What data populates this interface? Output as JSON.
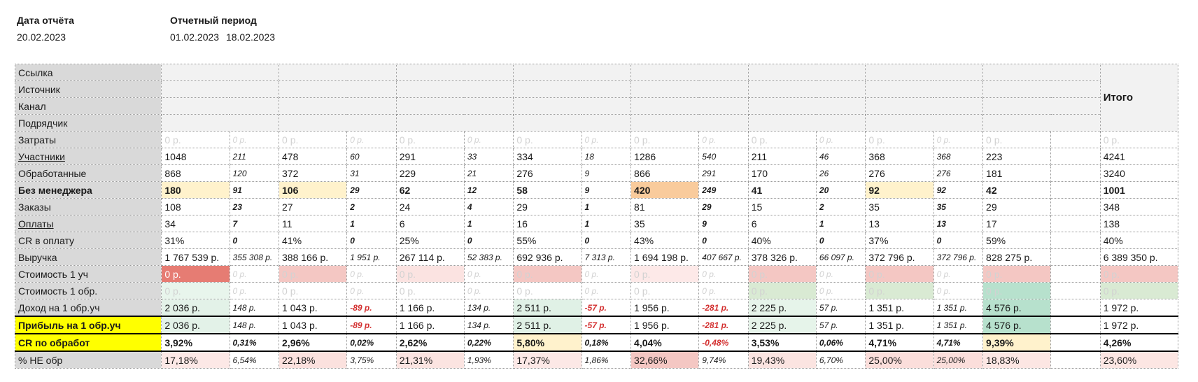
{
  "report_date": {
    "label": "Дата отчёта",
    "value": "20.02.2023"
  },
  "report_period": {
    "label": "Отчетный период",
    "from": "01.02.2023",
    "to": "18.02.2023"
  },
  "total_header": "Итого",
  "meta_rows": [
    "Ссылка",
    "Источник",
    "Канал",
    "Подрядчик"
  ],
  "colors": {
    "label_bg": "#d9d9d9",
    "highlight_yellow": "#ffff00",
    "cost_red_strong": "#e67c73",
    "cost_red_light": "#f4c7c3",
    "green_light": "#d9ead3",
    "green_strong": "#b7e1cd",
    "orange_peak": "#f9cb9c",
    "cream": "#fff2cc",
    "negative_text": "#d32f2f"
  },
  "rows": [
    {
      "label": "Затраты",
      "style": "",
      "cells": [
        [
          "0 р.",
          "0 р."
        ],
        [
          "0 р.",
          "0 р."
        ],
        [
          "0 р.",
          "0 р."
        ],
        [
          "0 р.",
          "0 р."
        ],
        [
          "0 р.",
          "0 р."
        ],
        [
          "0 р.",
          "0 р."
        ],
        [
          "0 р.",
          "0 р."
        ],
        [
          "0 р.",
          ""
        ]
      ],
      "total": "0 р."
    },
    {
      "label": "Участники",
      "style": "u",
      "cells": [
        [
          "1048",
          "211"
        ],
        [
          "478",
          "60"
        ],
        [
          "291",
          "33"
        ],
        [
          "334",
          "18"
        ],
        [
          "1286",
          "540"
        ],
        [
          "211",
          "46"
        ],
        [
          "368",
          "368"
        ],
        [
          "223",
          ""
        ]
      ],
      "total": "4241"
    },
    {
      "label": "Обработанные",
      "style": "",
      "cells": [
        [
          "868",
          "120"
        ],
        [
          "372",
          "31"
        ],
        [
          "229",
          "21"
        ],
        [
          "276",
          "9"
        ],
        [
          "866",
          "291"
        ],
        [
          "170",
          "26"
        ],
        [
          "276",
          "276"
        ],
        [
          "181",
          ""
        ]
      ],
      "total": "3240"
    },
    {
      "label": "Без менеджера",
      "style": "b",
      "cells": [
        [
          "180",
          "91"
        ],
        [
          "106",
          "29"
        ],
        [
          "62",
          "12"
        ],
        [
          "58",
          "9"
        ],
        [
          "420",
          "249"
        ],
        [
          "41",
          "20"
        ],
        [
          "92",
          "92"
        ],
        [
          "42",
          ""
        ]
      ],
      "total": "1001"
    },
    {
      "label": "Заказы",
      "style": "",
      "cells": [
        [
          "108",
          "23"
        ],
        [
          "27",
          "2"
        ],
        [
          "24",
          "4"
        ],
        [
          "29",
          "1"
        ],
        [
          "81",
          "29"
        ],
        [
          "15",
          "2"
        ],
        [
          "35",
          "35"
        ],
        [
          "29",
          ""
        ]
      ],
      "total": "348"
    },
    {
      "label": "Оплаты",
      "style": "u",
      "cells": [
        [
          "34",
          "7"
        ],
        [
          "11",
          "1"
        ],
        [
          "6",
          "1"
        ],
        [
          "16",
          "1"
        ],
        [
          "35",
          "9"
        ],
        [
          "6",
          "1"
        ],
        [
          "13",
          "13"
        ],
        [
          "17",
          ""
        ]
      ],
      "total": "138"
    },
    {
      "label": "CR в оплату",
      "style": "",
      "cells": [
        [
          "31%",
          "0"
        ],
        [
          "41%",
          "0"
        ],
        [
          "25%",
          "0"
        ],
        [
          "55%",
          "0"
        ],
        [
          "43%",
          "0"
        ],
        [
          "40%",
          "0"
        ],
        [
          "37%",
          "0"
        ],
        [
          "59%",
          ""
        ]
      ],
      "total": "40%"
    },
    {
      "label": "Выручка",
      "style": "",
      "cells": [
        [
          "1 767 539 р.",
          "355 308 р."
        ],
        [
          "388 166 р.",
          "1 951 р."
        ],
        [
          "267 114 р.",
          "52 383 р."
        ],
        [
          "692 936 р.",
          "7 313 р."
        ],
        [
          "1 694 198 р.",
          "407 667 р."
        ],
        [
          "378 326 р.",
          "66 097 р."
        ],
        [
          "372 796 р.",
          "372 796 р."
        ],
        [
          "828 275 р.",
          ""
        ]
      ],
      "total": "6 389 350 р."
    },
    {
      "label": "Стоимость 1 уч",
      "style": "",
      "cells": [
        [
          "0 р.",
          "0 р."
        ],
        [
          "0 р.",
          "0 р."
        ],
        [
          "0 р.",
          "0 р."
        ],
        [
          "0 р.",
          "0 р."
        ],
        [
          "0 р.",
          "0 р."
        ],
        [
          "0 р.",
          "0 р."
        ],
        [
          "0 р.",
          "0 р."
        ],
        [
          "0 р.",
          ""
        ]
      ],
      "total": "0 р."
    },
    {
      "label": "Стоимость 1 обр.",
      "style": "",
      "cells": [
        [
          "0 р.",
          "0 р."
        ],
        [
          "0 р.",
          "0 р."
        ],
        [
          "0 р.",
          "0 р."
        ],
        [
          "0 р.",
          "0 р."
        ],
        [
          "0 р.",
          "0 р."
        ],
        [
          "0 р.",
          "0 р."
        ],
        [
          "0 р.",
          "0 р."
        ],
        [
          "0 р.",
          ""
        ]
      ],
      "total": "0 р."
    },
    {
      "label": "Доход на 1 обр.уч",
      "style": "",
      "cells": [
        [
          "2 036 р.",
          "148 р."
        ],
        [
          "1 043 р.",
          "-89 р."
        ],
        [
          "1 166 р.",
          "134 р."
        ],
        [
          "2 511 р.",
          "-57 р."
        ],
        [
          "1 956 р.",
          "-281 р."
        ],
        [
          "2 225 р.",
          "57 р."
        ],
        [
          "1 351 р.",
          "1 351 р."
        ],
        [
          "4 576 р.",
          ""
        ]
      ],
      "total": "1 972 р."
    },
    {
      "label": "Прибыль на 1 обр.уч",
      "style": "hl",
      "cells": [
        [
          "2 036 р.",
          "148 р."
        ],
        [
          "1 043 р.",
          "-89 р."
        ],
        [
          "1 166 р.",
          "134 р."
        ],
        [
          "2 511 р.",
          "-57 р."
        ],
        [
          "1 956 р.",
          "-281 р."
        ],
        [
          "2 225 р.",
          "57 р."
        ],
        [
          "1 351 р.",
          "1 351 р."
        ],
        [
          "4 576 р.",
          ""
        ]
      ],
      "total": "1 972 р."
    },
    {
      "label": "CR по обработ",
      "style": "hl",
      "cells": [
        [
          "3,92%",
          "0,31%"
        ],
        [
          "2,96%",
          "0,02%"
        ],
        [
          "2,62%",
          "0,22%"
        ],
        [
          "5,80%",
          "0,18%"
        ],
        [
          "4,04%",
          "-0,48%"
        ],
        [
          "3,53%",
          "0,06%"
        ],
        [
          "4,71%",
          "4,71%"
        ],
        [
          "9,39%",
          ""
        ]
      ],
      "total": "4,26%"
    },
    {
      "label": "% НЕ обр",
      "style": "",
      "cells": [
        [
          "17,18%",
          "6,54%"
        ],
        [
          "22,18%",
          "3,75%"
        ],
        [
          "21,31%",
          "1,93%"
        ],
        [
          "17,37%",
          "1,86%"
        ],
        [
          "32,66%",
          "9,74%"
        ],
        [
          "19,43%",
          "6,70%"
        ],
        [
          "25,00%",
          "25,00%"
        ],
        [
          "18,83%",
          ""
        ]
      ],
      "total": "23,60%"
    }
  ]
}
